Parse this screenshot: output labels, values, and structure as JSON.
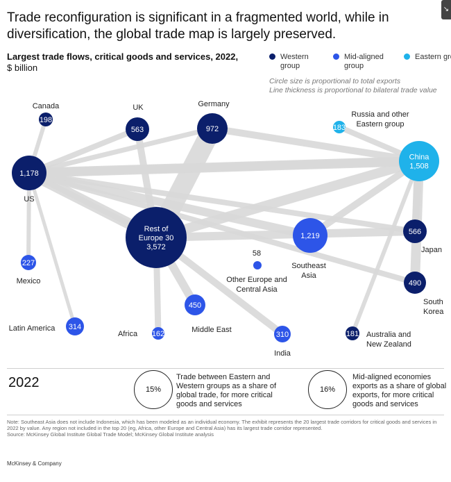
{
  "headline": "Trade reconfiguration is significant in a fragmented world, while in diversification, the global trade map is largely preserved.",
  "subtitle": {
    "bold": "Largest trade flows, critical goods and services, 2022,",
    "regular": "$ billion"
  },
  "legend": {
    "groups": [
      {
        "label": "Western group",
        "color": "#0b1f6b"
      },
      {
        "label": "Mid-aligned group",
        "color": "#2d55e8"
      },
      {
        "label": "Eastern group",
        "color": "#1fb2ea"
      }
    ],
    "notes": [
      "Circle size is proportional to total exports",
      "Line thickness is proportional to bilateral trade value"
    ]
  },
  "corner_icon": "↘",
  "diagram": {
    "nodes": [
      {
        "id": "canada",
        "name": "Canada",
        "value": "198",
        "group": "western"
      },
      {
        "id": "uk",
        "name": "UK",
        "value": "563",
        "group": "western"
      },
      {
        "id": "germany",
        "name": "Germany",
        "value": "972",
        "group": "western"
      },
      {
        "id": "russia",
        "name": "Russia and other Eastern group",
        "value": "183",
        "group": "eastern"
      },
      {
        "id": "china",
        "name": "China",
        "value": "1,508",
        "group": "eastern"
      },
      {
        "id": "us",
        "name": "US",
        "value": "1,178",
        "group": "western"
      },
      {
        "id": "roe",
        "name": "Rest of Europe 30",
        "value": "3,572",
        "group": "western"
      },
      {
        "id": "sea",
        "name": "Southeast Asia",
        "value": "1,219",
        "group": "mid"
      },
      {
        "id": "japan",
        "name": "Japan",
        "value": "566",
        "group": "western"
      },
      {
        "id": "mexico",
        "name": "Mexico",
        "value": "227",
        "group": "mid"
      },
      {
        "id": "oeca",
        "name": "Other Europe and Central Asia",
        "value": "58",
        "group": "mid"
      },
      {
        "id": "korea",
        "name": "South Korea",
        "value": "490",
        "group": "western"
      },
      {
        "id": "me",
        "name": "Middle East",
        "value": "450",
        "group": "mid"
      },
      {
        "id": "latam",
        "name": "Latin America",
        "value": "314",
        "group": "mid"
      },
      {
        "id": "africa",
        "name": "Africa",
        "value": "162",
        "group": "mid"
      },
      {
        "id": "india",
        "name": "India",
        "value": "310",
        "group": "mid"
      },
      {
        "id": "anz",
        "name": "Australia and New Zealand",
        "value": "181",
        "group": "western"
      }
    ],
    "flows": [
      [
        "us",
        "roe"
      ],
      [
        "us",
        "china"
      ],
      [
        "us",
        "canada"
      ],
      [
        "us",
        "mexico"
      ],
      [
        "us",
        "latam"
      ],
      [
        "us",
        "japan"
      ],
      [
        "us",
        "germany"
      ],
      [
        "us",
        "uk"
      ],
      [
        "us",
        "sea"
      ],
      [
        "roe",
        "germany"
      ],
      [
        "roe",
        "uk"
      ],
      [
        "roe",
        "china"
      ],
      [
        "roe",
        "africa"
      ],
      [
        "roe",
        "me"
      ],
      [
        "roe",
        "india"
      ],
      [
        "roe",
        "us"
      ],
      [
        "roe",
        "japan"
      ],
      [
        "china",
        "russia"
      ],
      [
        "china",
        "japan"
      ],
      [
        "china",
        "korea"
      ],
      [
        "china",
        "anz"
      ],
      [
        "china",
        "sea"
      ],
      [
        "china",
        "germany"
      ],
      [
        "china",
        "us"
      ],
      [
        "korea",
        "us"
      ]
    ]
  },
  "summary": {
    "year": "2022",
    "stats": [
      {
        "value": "15%",
        "text": "Trade between Eastern and Western groups as a share of global trade, for more critical goods and services"
      },
      {
        "value": "16%",
        "text": "Mid-aligned economies exports as a share of global exports, for more critical goods and services"
      }
    ]
  },
  "notes": [
    "Note: Southeast Asia does not include Indonesia, which has been modeled as an individual economy. The exhibit represents the 20 largest trade corridors for critical goods and services in 2022 by value. Any region not included in the top 20 (eg, Africa, other Europe and Central Asia) has its largest trade corridor represented.",
    "Source: McKinsey Global Institute Global Trade Model; McKinsey Global Institute analysis"
  ],
  "brand": "McKinsey & Company"
}
